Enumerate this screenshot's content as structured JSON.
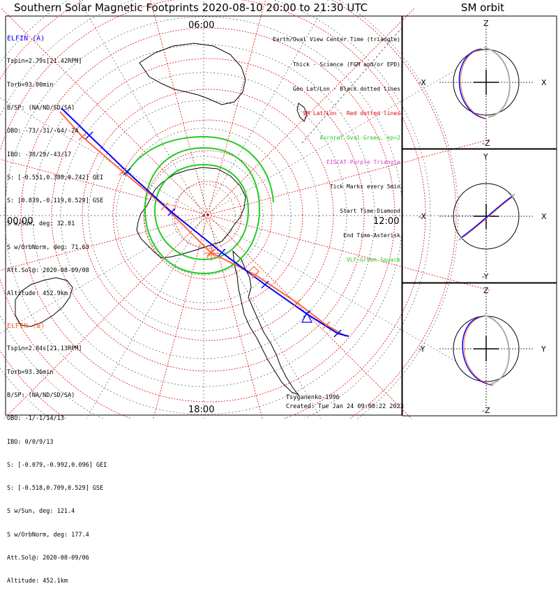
{
  "title": "Southern Solar Magnetic Footprints 2020-08-10 20:00 to 21:30 UTC",
  "orbit_title": "SM orbit",
  "colors": {
    "elfin_a": "#0000ff",
    "elfin_b": "#ff6a3d",
    "sm_grid": "#e00000",
    "oval": "#22cc22",
    "eiscat": "#cc44cc",
    "vlf": "#22cc22"
  },
  "time_labels": {
    "top": "06:00",
    "left": "00:00",
    "right": "12:00",
    "bottom": "18:00"
  },
  "elfin_a": {
    "header": "ELFIN (A)",
    "lines": [
      "Tspin=2.79s[21.42RPM]",
      "Torb=93.00min",
      "B/SP: (NA/ND/SD/SA)",
      "OBO: -73/-31/-64/-24",
      "IBO: -38/29/-43/17",
      "S: [-0.551,0.380,0.742] GEI",
      "S: [0.839,-0.119,0.529] GSE",
      "S w/Sun, deg: 32.81",
      "S w/OrbNorm, deg: 71.63",
      "Att.Sol@: 2020-08-09/08",
      "Altitude: 452.9km"
    ]
  },
  "elfin_b": {
    "header": "ELFIN (B)",
    "lines": [
      "Tspin=2.84s[21.13RPM]",
      "Torb=93.36min",
      "B/SP: (NA/ND/SD/SA)",
      "OBO: -1/-1/14/13",
      "IBO: 0/0/9/13",
      "S: [-0.079,-0.992,0.096] GEI",
      "S: [-0.518,0.709,0.529] GSE",
      "S w/Sun, deg: 121.4",
      "S w/OrbNorm, deg: 177.4",
      "Att.Sol@: 2020-08-09/06",
      "Altitude: 452.1km"
    ]
  },
  "legend": [
    "Earth/Oval View Center Time (triangle)",
    "Thick - Science (FGM and/or EPD)",
    "Geo Lat/Lon - Black dotted lines",
    "SM Lat/Lon - Red dotted lines",
    "Auroral Oval-Green, kp=2",
    "EISCAT-Purple Triangle",
    "Tick Marks every 5min",
    "Start Time-Diamond",
    "End Time-Asterisk",
    "VLF-Green Square"
  ],
  "credit": "Tsyganenko-1996",
  "created": "Created: Tue Jan 24 09:00:22 2023",
  "panels": [
    {
      "name": "xz",
      "top": "Z",
      "bottom": "-Z",
      "left": "-X",
      "right": "X"
    },
    {
      "name": "xy",
      "top": "Y",
      "bottom": "-Y",
      "left": "-X",
      "right": "X"
    },
    {
      "name": "yz",
      "top": "Z",
      "bottom": "-Z",
      "left": "-Y",
      "right": "Y"
    }
  ]
}
